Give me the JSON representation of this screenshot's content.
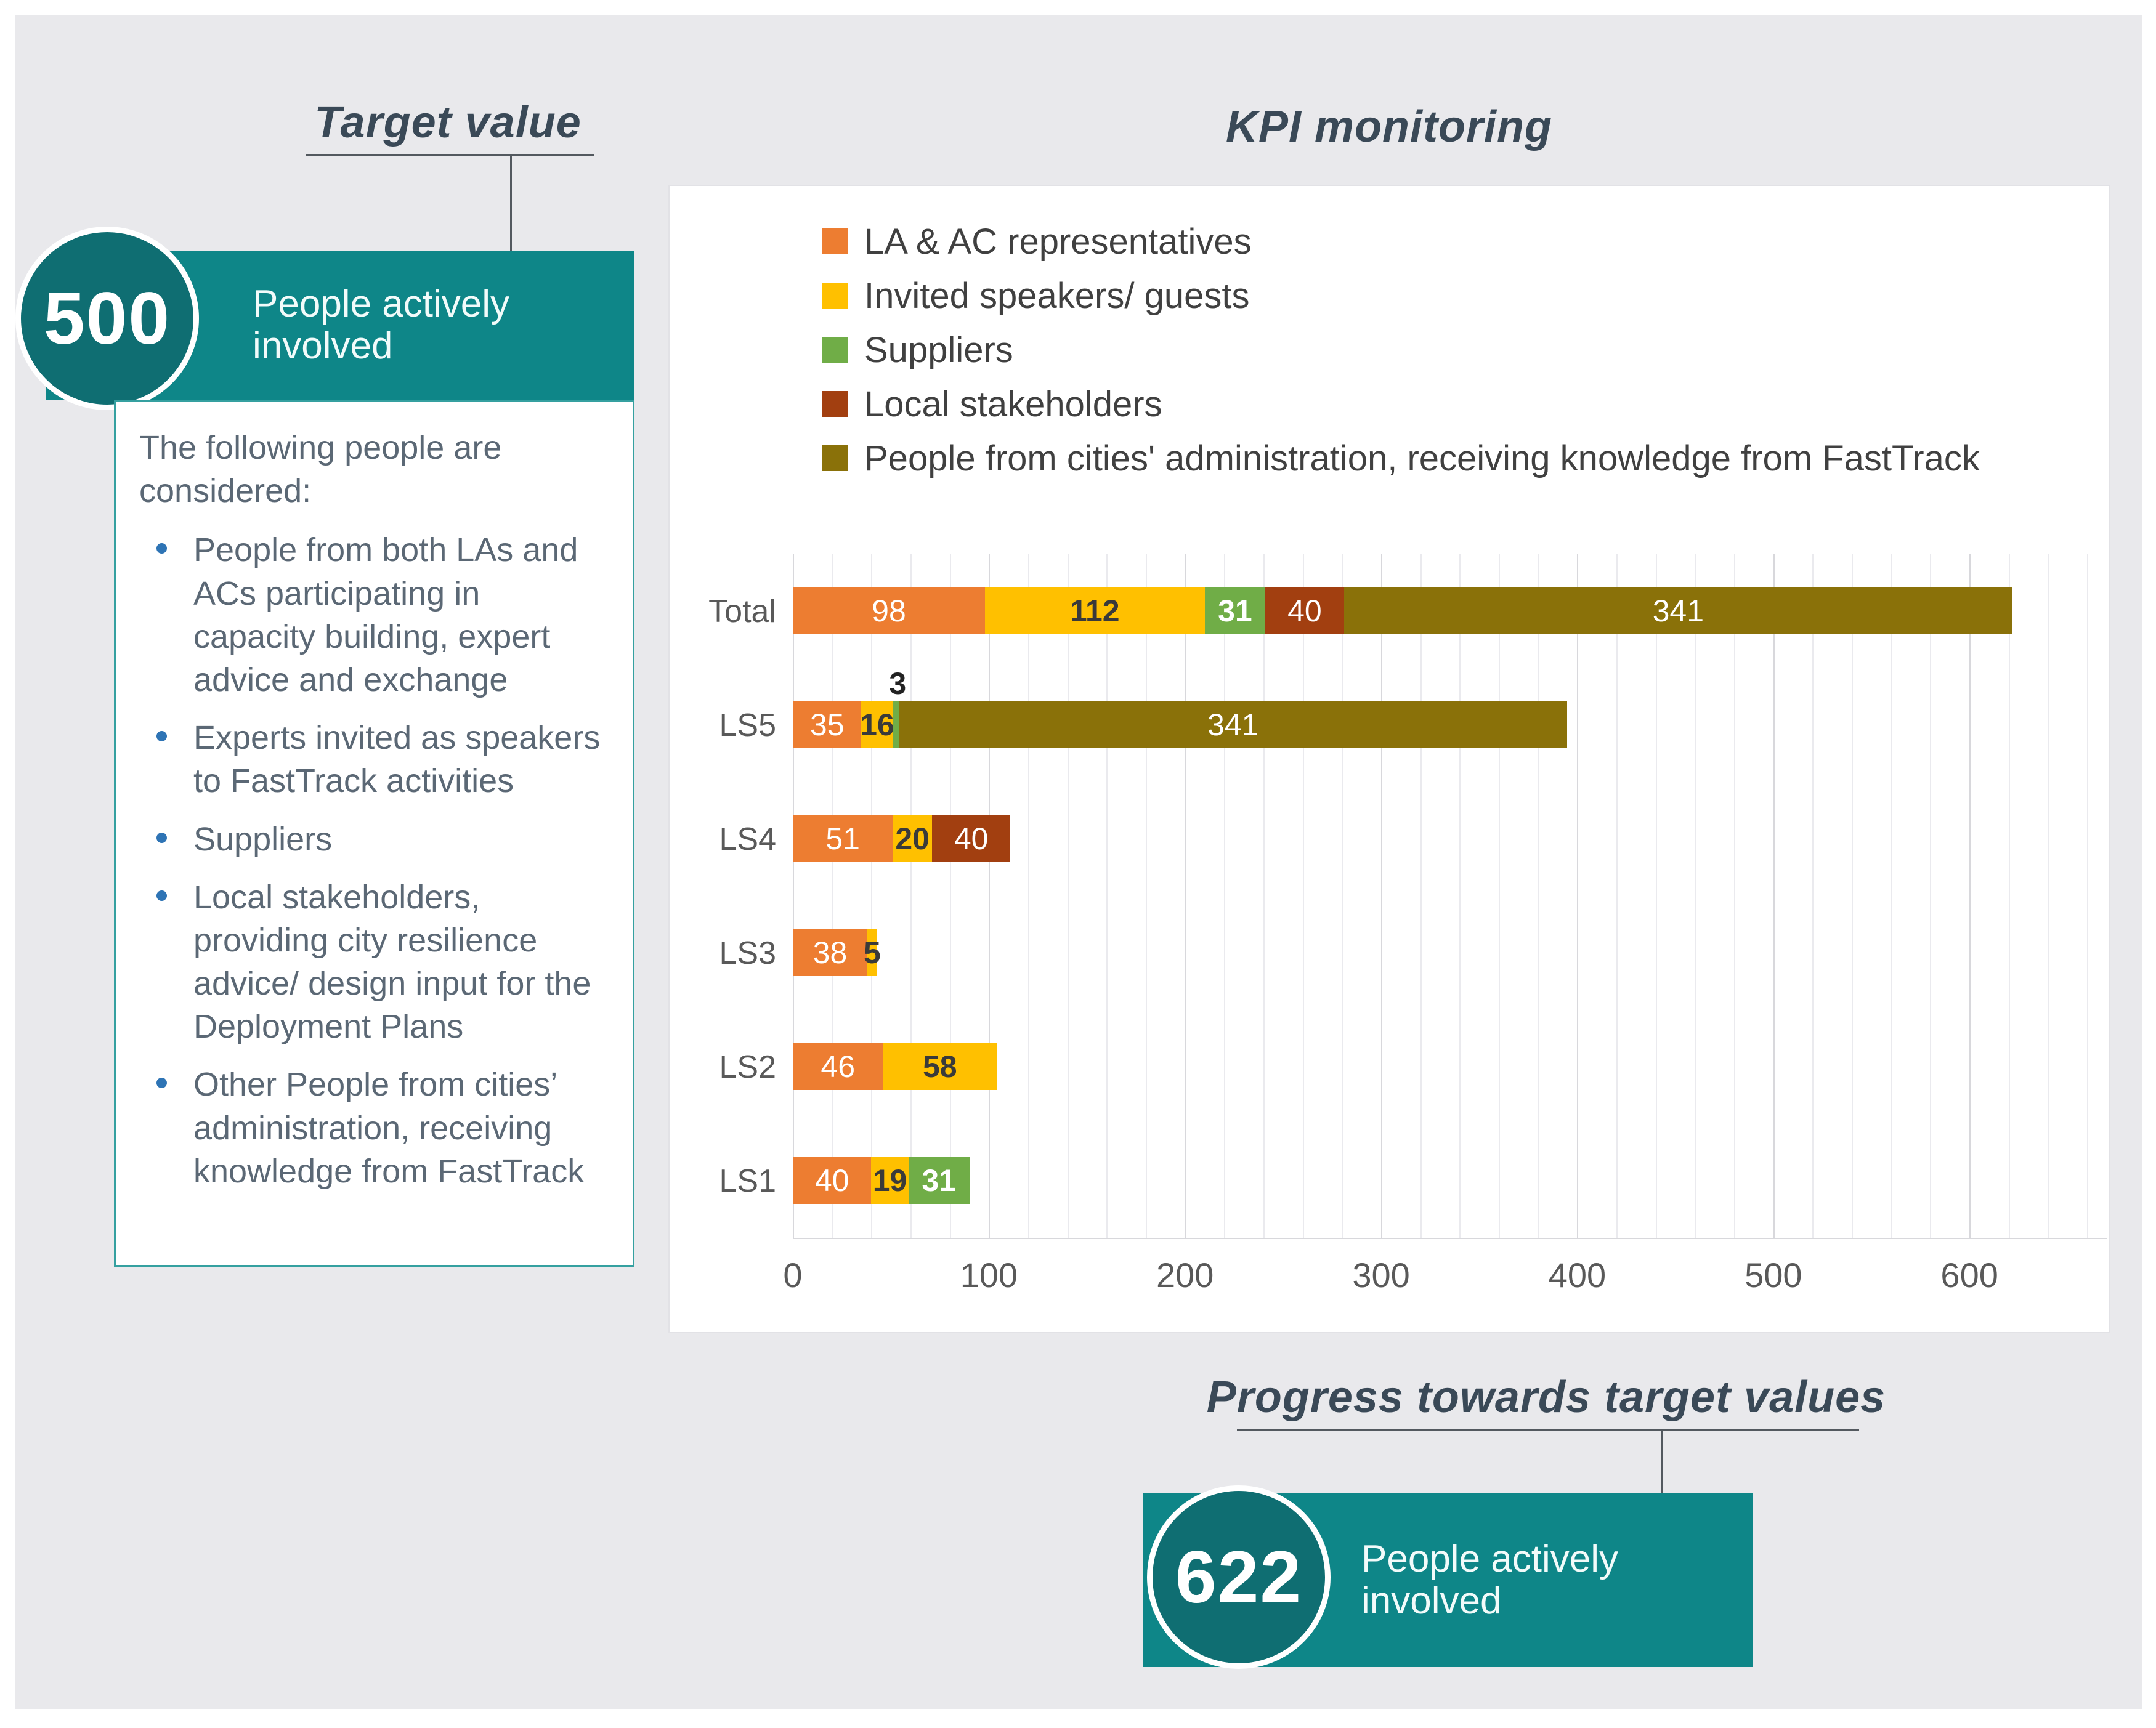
{
  "colors": {
    "teal_box": "#0E8688",
    "teal_circle": "#0F6E72",
    "title_text": "#3A4957",
    "body_text": "#5B6875",
    "bullet_dot": "#2E74B5",
    "axis_text": "#595959",
    "legend_text": "#404040",
    "slide_background": "#E9E9EC"
  },
  "target_section": {
    "title": "Target value",
    "value": "500",
    "label_lines": [
      "People actively",
      "involved"
    ]
  },
  "description": {
    "intro": "The following people are considered:",
    "bullets": [
      "People from both LAs and ACs participating in capacity building, expert advice and exchange",
      "Experts invited as speakers to FastTrack activities",
      "Suppliers",
      "Local stakeholders, providing city resilience advice/ design input for the Deployment Plans",
      "Other People from cities’ administration, receiving knowledge from FastTrack"
    ]
  },
  "progress_section": {
    "title": "Progress towards target values",
    "value": "622",
    "label_lines": [
      "People actively",
      "involved"
    ]
  },
  "chart_data": {
    "type": "bar",
    "orientation": "horizontal",
    "stacked": true,
    "title": "KPI monitoring",
    "categories": [
      "Total",
      "LS5",
      "LS4",
      "LS3",
      "LS2",
      "LS1"
    ],
    "series": [
      {
        "name": "LA & AC representatives",
        "color": "#ED7D31",
        "label_color": "#FFFFFF",
        "label_bold": false,
        "values": [
          98,
          35,
          51,
          38,
          46,
          40
        ]
      },
      {
        "name": "Invited speakers/ guests",
        "color": "#FFC000",
        "label_color": "#3A3A3A",
        "label_bold": true,
        "values": [
          112,
          16,
          20,
          5,
          58,
          19
        ]
      },
      {
        "name": "Suppliers",
        "color": "#70AD47",
        "label_color": "#FFFFFF",
        "label_bold": true,
        "values": [
          31,
          3,
          0,
          0,
          0,
          31
        ]
      },
      {
        "name": "Local stakeholders",
        "color": "#A23F10",
        "label_color": "#FFFFFF",
        "label_bold": false,
        "values": [
          40,
          0,
          40,
          0,
          0,
          0
        ]
      },
      {
        "name": "People from cities' administration, receiving knowledge from FastTrack",
        "color": "#8A7109",
        "label_color": "#FFFFFF",
        "label_bold": false,
        "values": [
          341,
          341,
          0,
          0,
          0,
          0
        ]
      }
    ],
    "totals": [
      622,
      395,
      111,
      43,
      104,
      90
    ],
    "xlim": [
      0,
      670
    ],
    "x_ticks": [
      0,
      100,
      200,
      300,
      400,
      500,
      600
    ],
    "minor_grid_step": 20,
    "grid": true,
    "legend_position": "top-left"
  }
}
